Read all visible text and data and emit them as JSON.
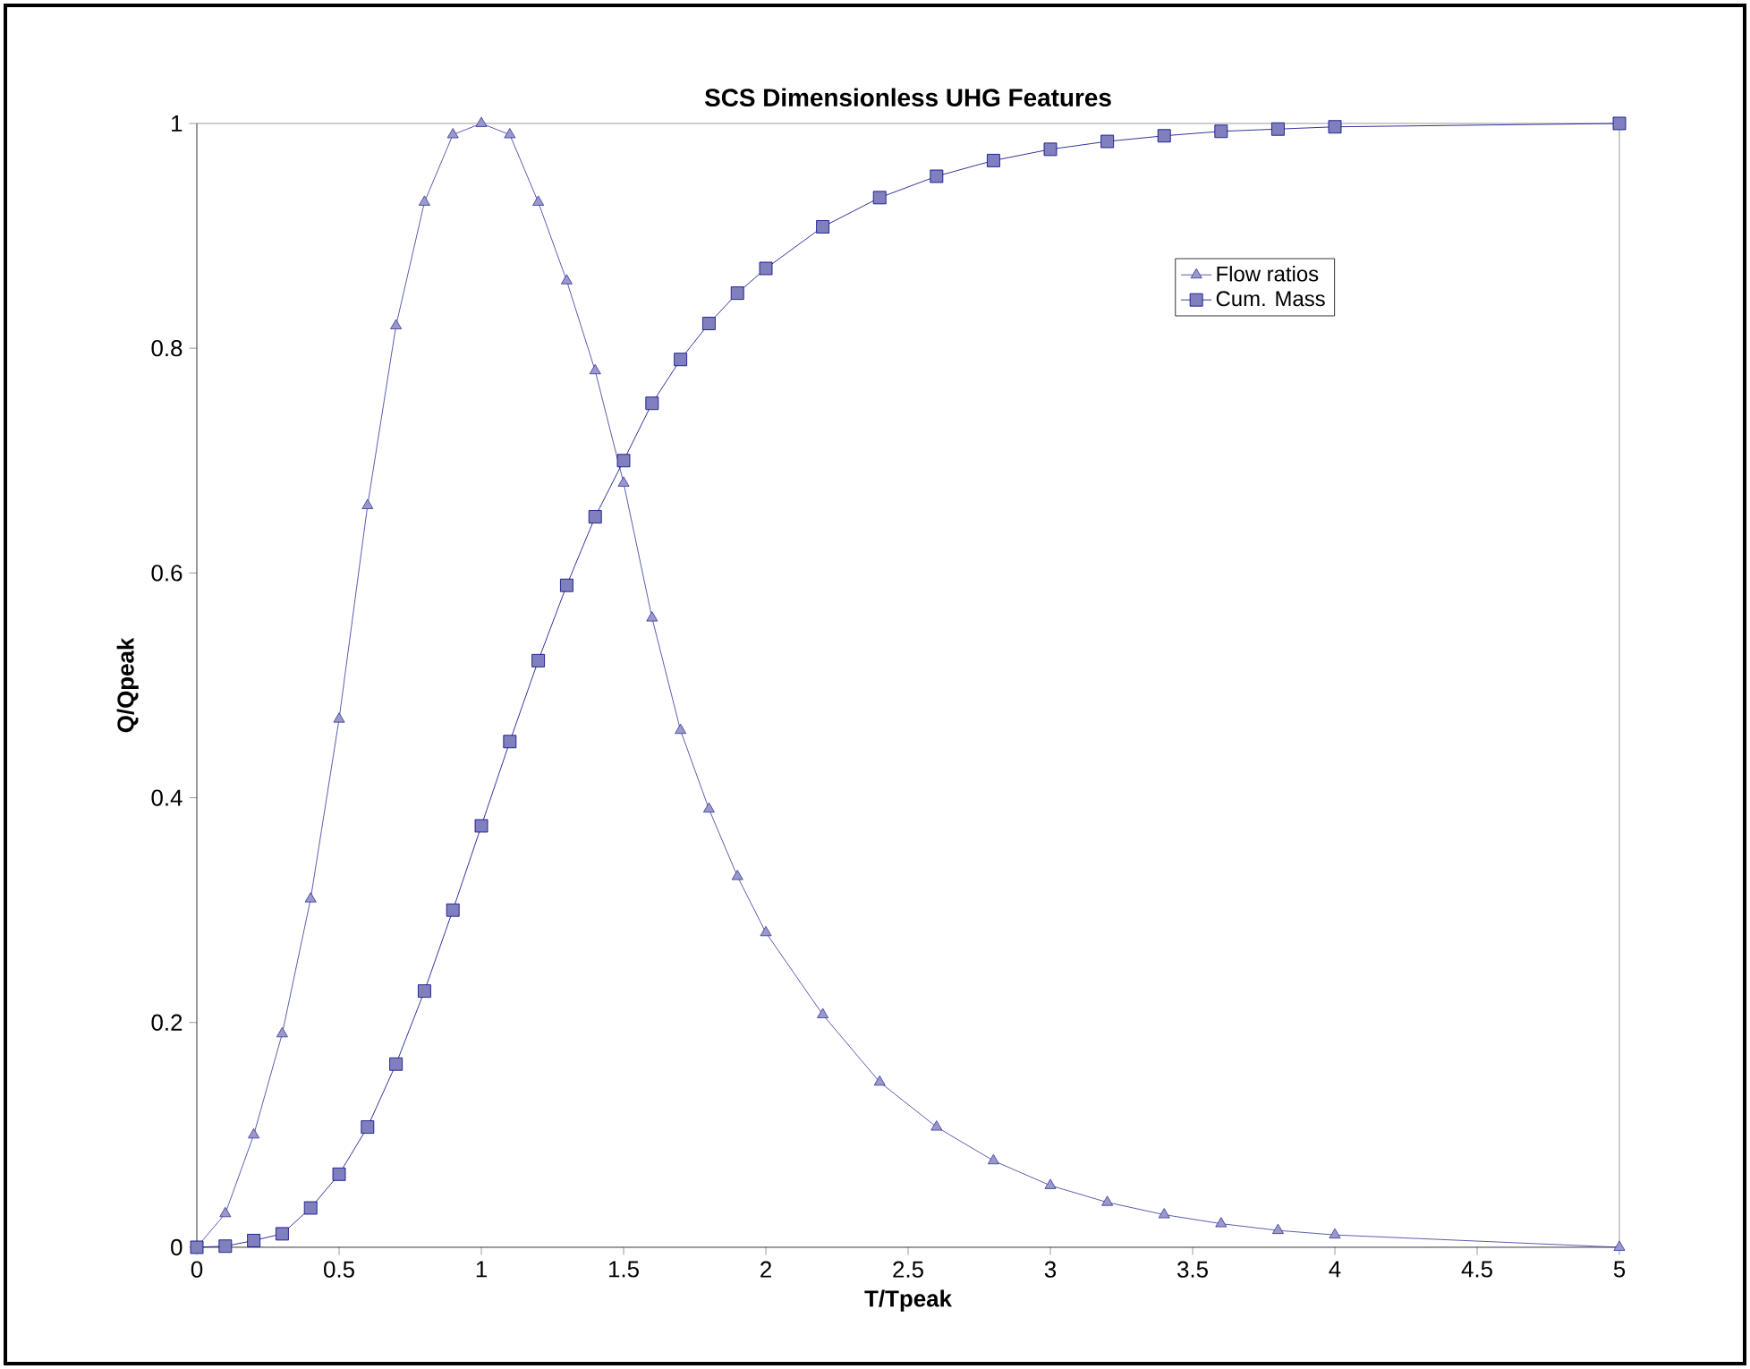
{
  "chart_data": {
    "type": "line",
    "title": "SCS Dimensionless UHG Features",
    "xlabel": "T/Tpeak",
    "ylabel": "Q/Qpeak",
    "xlim": [
      0,
      5
    ],
    "ylim": [
      0,
      1
    ],
    "xticks": [
      0,
      0.5,
      1,
      1.5,
      2,
      2.5,
      3,
      3.5,
      4,
      4.5,
      5
    ],
    "yticks": [
      0,
      0.2,
      0.4,
      0.6,
      0.8,
      1
    ],
    "grid": false,
    "legend": "top right",
    "line_style": "solid",
    "x": [
      0,
      0.1,
      0.2,
      0.3,
      0.4,
      0.5,
      0.6,
      0.7,
      0.8,
      0.9,
      1.0,
      1.1,
      1.2,
      1.3,
      1.4,
      1.5,
      1.6,
      1.7,
      1.8,
      1.9,
      2.0,
      2.2,
      2.4,
      2.6,
      2.8,
      3.0,
      3.2,
      3.4,
      3.6,
      3.8,
      4.0,
      5.0
    ],
    "series": [
      {
        "name": "Flow ratios",
        "color": "#333399",
        "marker": "triangle",
        "values": [
          0,
          0.03,
          0.1,
          0.19,
          0.31,
          0.47,
          0.66,
          0.82,
          0.93,
          0.99,
          1.0,
          0.99,
          0.93,
          0.86,
          0.78,
          0.68,
          0.56,
          0.46,
          0.39,
          0.33,
          0.28,
          0.207,
          0.147,
          0.107,
          0.077,
          0.055,
          0.04,
          0.029,
          0.021,
          0.015,
          0.011,
          0
        ]
      },
      {
        "name": "Cum. Mass",
        "color": "#000080",
        "marker": "square",
        "values": [
          0,
          0.001,
          0.006,
          0.012,
          0.035,
          0.065,
          0.107,
          0.163,
          0.228,
          0.3,
          0.375,
          0.45,
          0.522,
          0.589,
          0.65,
          0.7,
          0.751,
          0.79,
          0.822,
          0.849,
          0.871,
          0.908,
          0.934,
          0.953,
          0.967,
          0.977,
          0.984,
          0.989,
          0.993,
          0.995,
          0.997,
          1.0
        ]
      }
    ]
  }
}
